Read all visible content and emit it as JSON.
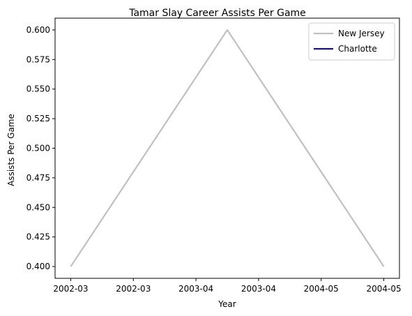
{
  "chart_data": {
    "type": "line",
    "title": "Tamar Slay Career Assists Per Game",
    "xlabel": "Year",
    "ylabel": "Assists Per Game",
    "x_tick_labels": [
      "2002-03",
      "2002-03",
      "2003-04",
      "2003-04",
      "2004-05",
      "2004-05"
    ],
    "y_ticks": [
      0.4,
      0.425,
      0.45,
      0.475,
      0.5,
      0.525,
      0.55,
      0.575,
      0.6
    ],
    "y_tick_labels": [
      "0.400",
      "0.425",
      "0.450",
      "0.475",
      "0.500",
      "0.525",
      "0.550",
      "0.575",
      "0.600"
    ],
    "xlim": [
      -0.1,
      2.1
    ],
    "ylim": [
      0.39,
      0.61
    ],
    "grid": false,
    "legend_position": "top-right",
    "series": [
      {
        "name": "New Jersey",
        "color": "#c0c0c0",
        "x": [
          0,
          1,
          2
        ],
        "y": [
          0.4,
          0.6,
          0.4
        ]
      },
      {
        "name": "Charlotte",
        "color": "#1b1464",
        "x": [],
        "y": []
      }
    ]
  }
}
